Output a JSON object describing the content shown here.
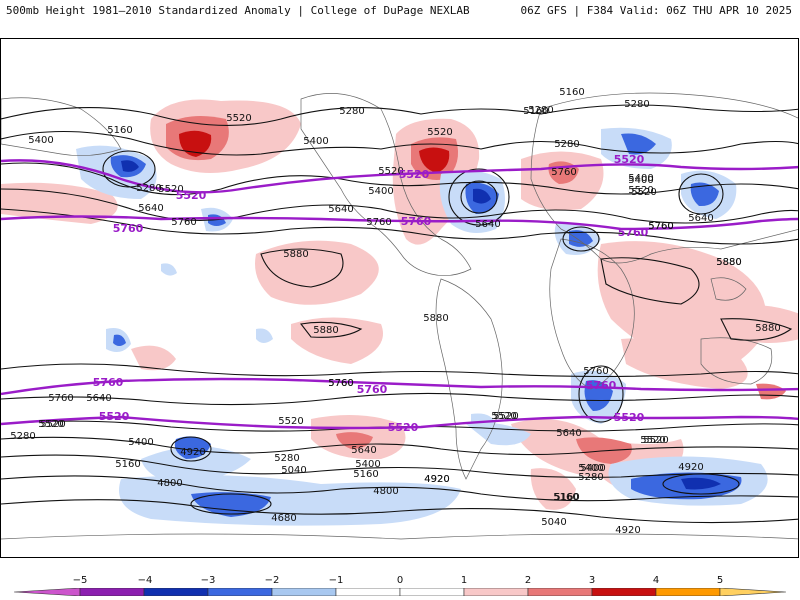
{
  "header": {
    "title": "500mb Height 1981–2010 Standardized Anomaly | College of DuPage NEXLAB",
    "run_info": "06Z GFS | F384 Valid: 06Z THU APR 10 2025"
  },
  "colorbar": {
    "ticks": [
      "−5",
      "−4",
      "−3",
      "−2",
      "−1",
      "0",
      "1",
      "2",
      "3",
      "4",
      "5"
    ],
    "colors": [
      "#cc55cc",
      "#8c1fb0",
      "#1030b0",
      "#3b68e0",
      "#a8c8f0",
      "#ffffff",
      "#ffffff",
      "#f8c8c8",
      "#e87878",
      "#c81010",
      "#ff9a00",
      "#ffd060"
    ]
  },
  "map": {
    "contour_labels": [
      "5160",
      "5280",
      "5280",
      "5400",
      "5520",
      "5400",
      "5160",
      "5280",
      "5520",
      "5160",
      "5280",
      "5400",
      "5520",
      "5520",
      "5760",
      "5640",
      "5760",
      "5280",
      "5520",
      "5400",
      "5640",
      "5760",
      "5760",
      "5640",
      "5400",
      "5640",
      "5520",
      "5760",
      "5880",
      "5880",
      "5880",
      "5880",
      "5880",
      "5880",
      "5760",
      "5640",
      "5520",
      "5400",
      "5280",
      "5160",
      "5520",
      "5400",
      "5160",
      "4920",
      "5280",
      "5040",
      "5520",
      "5640",
      "5400",
      "5160",
      "4920",
      "4800",
      "4680",
      "5760",
      "5520",
      "5760",
      "5520",
      "5760",
      "5520",
      "5640",
      "5400",
      "5280",
      "5160",
      "5040",
      "4920",
      "4920",
      "4800",
      "4920",
      "5520"
    ],
    "highlight_labels": [
      "5520",
      "5520",
      "5760",
      "5760",
      "5520",
      "5760",
      "5760",
      "5760",
      "5520",
      "5520",
      "5520",
      "5760"
    ]
  }
}
